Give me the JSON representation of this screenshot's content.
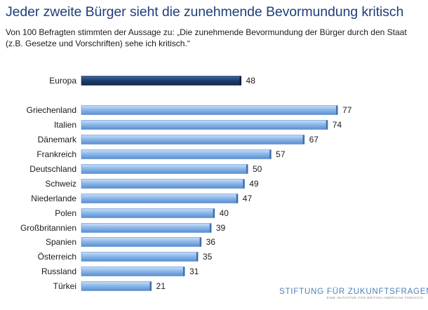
{
  "header": {
    "title": "Jeder zweite Bürger sieht die zunehmende Bevormundung kritisch",
    "subtitle": "Von 100 Befragten stimmten der Aussage zu: „Die zunehmende Bevormundung der Bürger durch den Staat (z.B. Gesetze und Vorschriften) sehe ich kritisch.“"
  },
  "chart_data": {
    "type": "bar",
    "orientation": "horizontal",
    "categories": [
      "Europa",
      "Griechenland",
      "Italien",
      "Dänemark",
      "Frankreich",
      "Deutschland",
      "Schweiz",
      "Niederlande",
      "Polen",
      "Großbritannien",
      "Spanien",
      "Österreich",
      "Russland",
      "Türkei"
    ],
    "values": [
      48,
      77,
      74,
      67,
      57,
      50,
      49,
      47,
      40,
      39,
      36,
      35,
      31,
      21
    ],
    "highlight_category": "Europa",
    "xlim": [
      0,
      100
    ],
    "grid": false,
    "colors": {
      "bar": "#8db8ea",
      "bar_dark": "#4a7fc0",
      "highlight": "#1e3c6e"
    }
  },
  "logo": {
    "name": "STIFTUNG FÜR ZUKUNFTSFRAGEN",
    "tagline": "EINE INITIATIVE VON BRITISH AMERICAN TOBACCO"
  }
}
